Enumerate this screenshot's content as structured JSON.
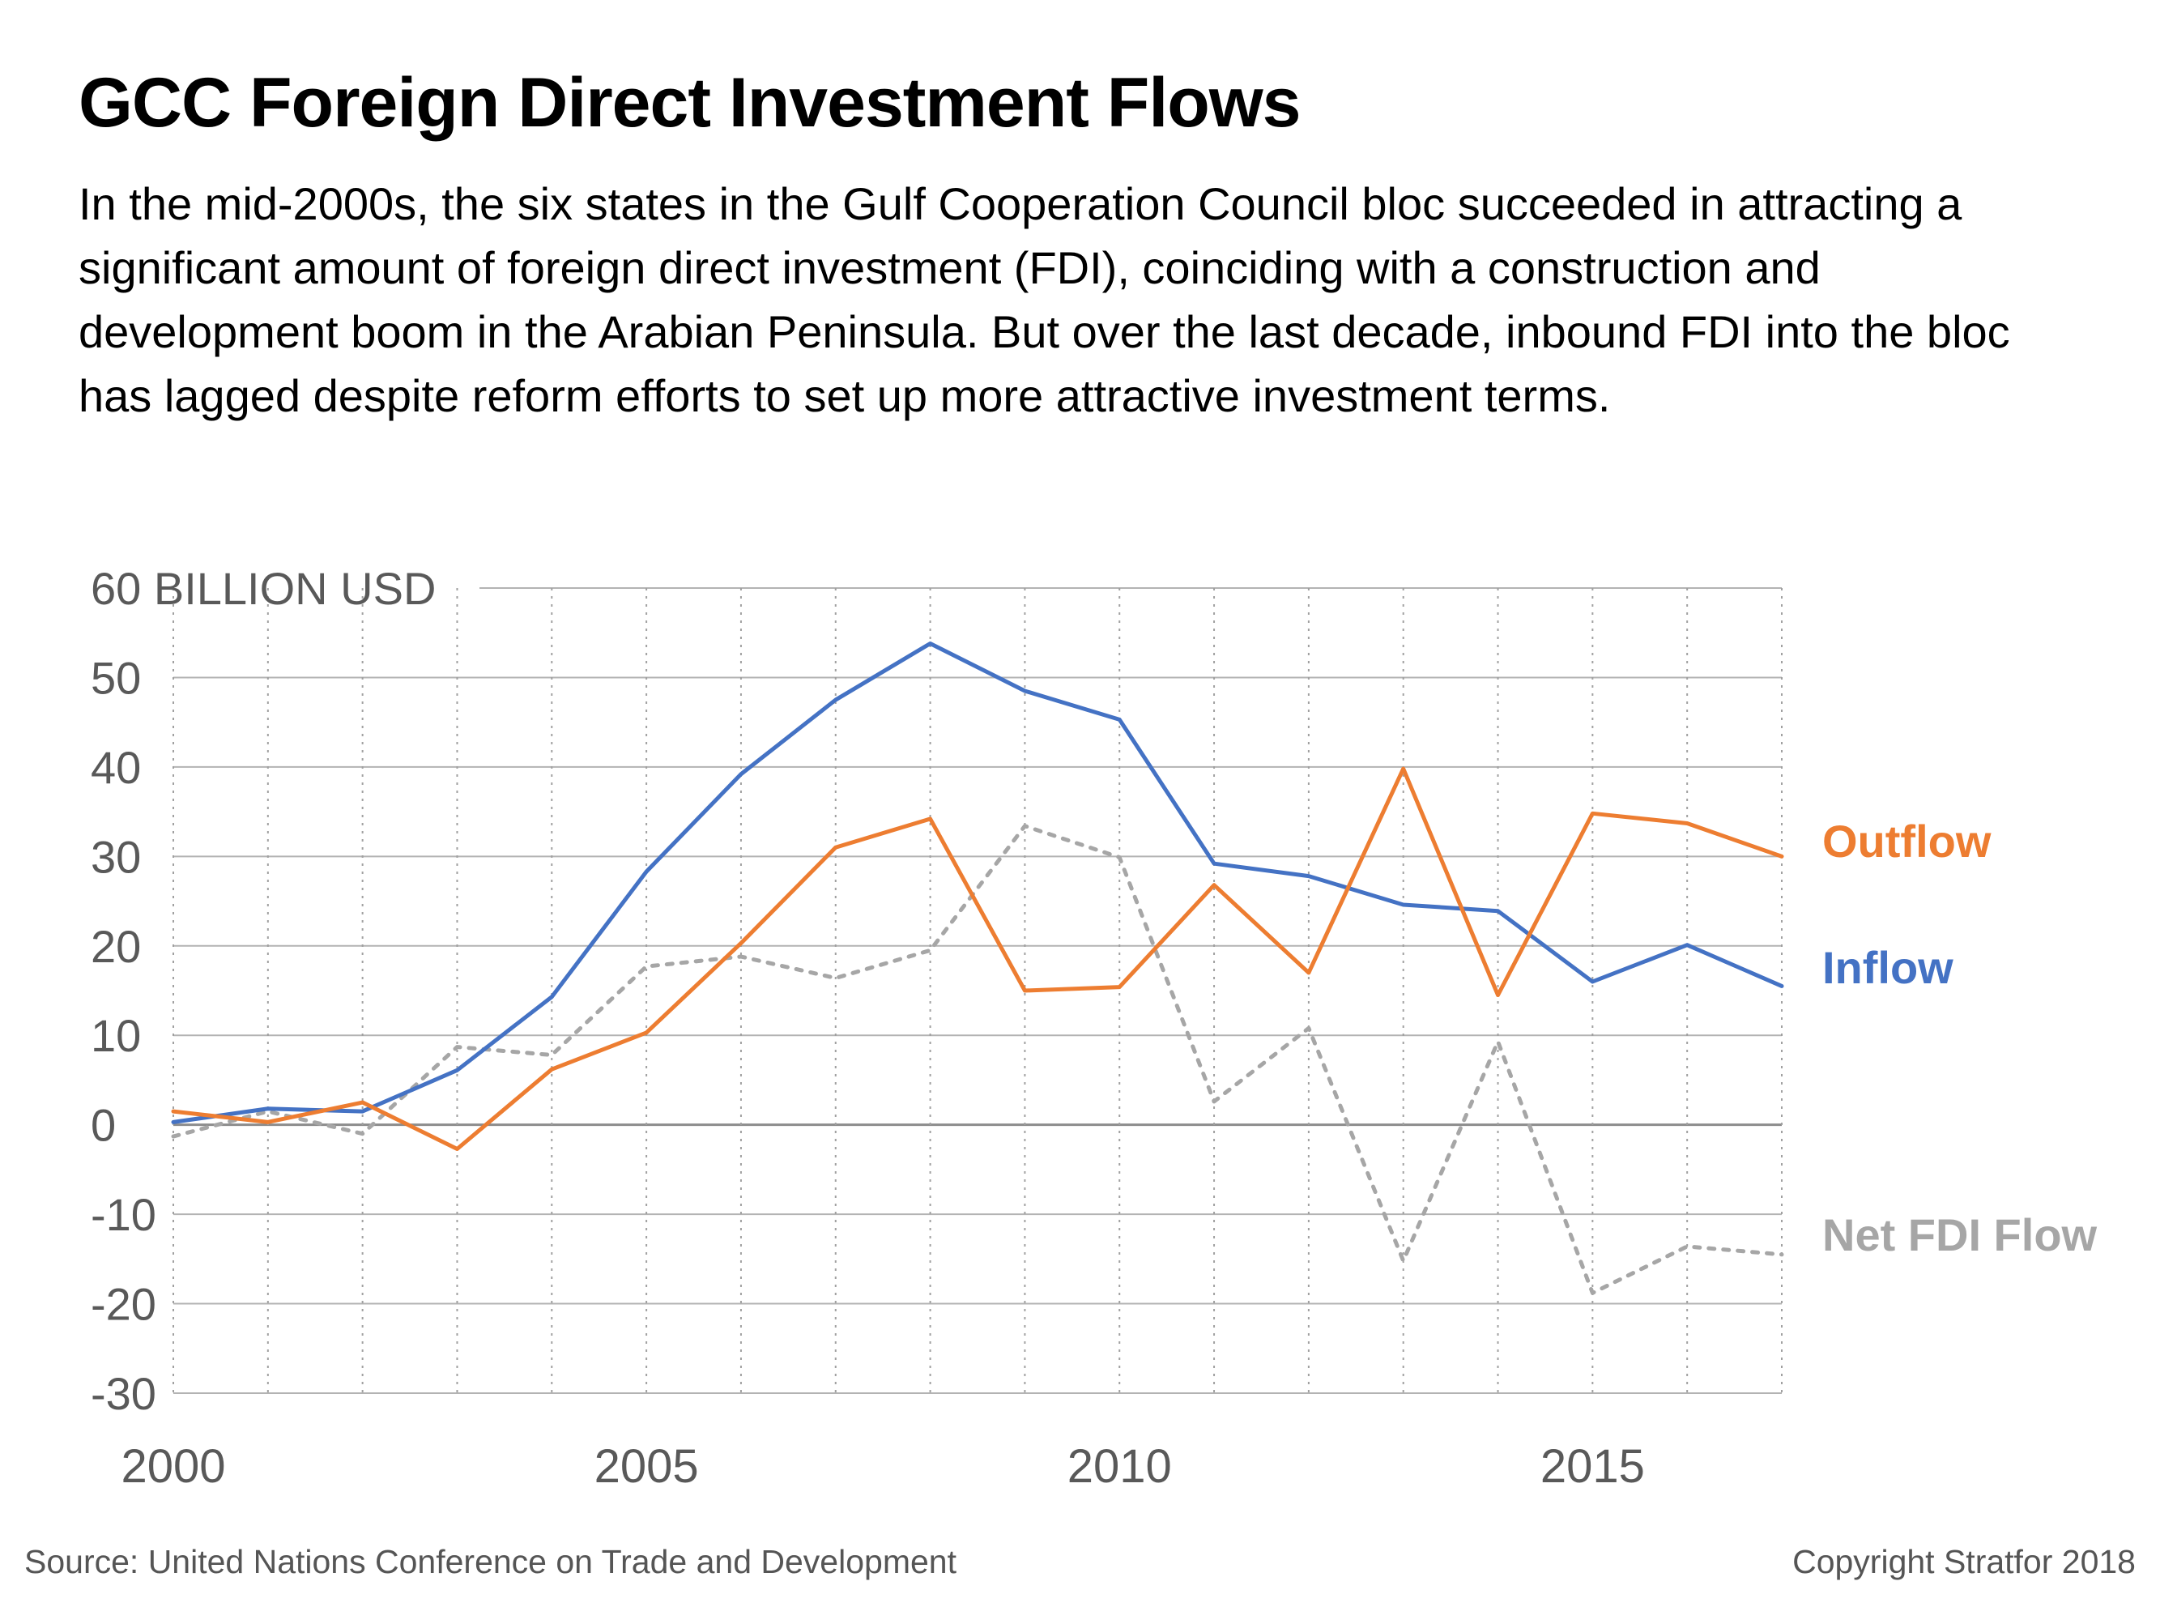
{
  "title": "GCC Foreign Direct Investment Flows",
  "subtitle": "In the mid-2000s, the six states in the Gulf Cooperation Council bloc succeeded in attracting a significant amount of foreign direct investment (FDI), coinciding with a construction and development boom in the Arabian Peninsula. But over the last decade, inbound FDI into the bloc has lagged despite reform efforts to set up more attractive investment terms.",
  "source": "Source: United Nations Conference on Trade and Development",
  "copyright": "Copyright Stratfor 2018",
  "chart_data": {
    "type": "line",
    "x": [
      2000,
      2001,
      2002,
      2003,
      2004,
      2005,
      2006,
      2007,
      2008,
      2009,
      2010,
      2011,
      2012,
      2013,
      2014,
      2015,
      2016,
      2017
    ],
    "x_ticks": [
      2000,
      2005,
      2010,
      2015
    ],
    "x_tick_labels": [
      "2000",
      "2005",
      "2010",
      "2015"
    ],
    "xlim": [
      2000,
      2017
    ],
    "ylim": [
      -30,
      60
    ],
    "y_ticks": [
      -30,
      -20,
      -10,
      0,
      10,
      20,
      30,
      40,
      50,
      60
    ],
    "y_tick_labels": [
      "-30",
      "-20",
      "-10",
      "0",
      "10",
      "20",
      "30",
      "40",
      "50",
      "60 BILLION USD"
    ],
    "grid": true,
    "legend": "right, labels at line ends",
    "series": [
      {
        "name": "Outflow",
        "color": "#ED7D31",
        "style": "solid",
        "values": [
          1.5,
          0.3,
          2.5,
          -2.7,
          6.2,
          10.3,
          20.3,
          31.0,
          34.2,
          15.0,
          15.4,
          26.8,
          17.0,
          39.8,
          14.5,
          34.8,
          33.7,
          30.0
        ]
      },
      {
        "name": "Inflow",
        "color": "#4472C4",
        "style": "solid",
        "values": [
          0.3,
          1.8,
          1.5,
          6.1,
          14.3,
          28.3,
          39.2,
          47.5,
          53.8,
          48.5,
          45.3,
          29.2,
          27.8,
          24.6,
          23.9,
          16.0,
          20.1,
          15.5
        ]
      },
      {
        "name": "Net FDI Flow",
        "color": "#A6A6A6",
        "style": "dotted",
        "values": [
          -1.3,
          1.5,
          -1.0,
          8.7,
          7.8,
          17.7,
          18.8,
          16.4,
          19.5,
          33.4,
          29.9,
          2.6,
          10.8,
          -15.2,
          9.3,
          -18.8,
          -13.6,
          -14.5
        ]
      }
    ]
  }
}
